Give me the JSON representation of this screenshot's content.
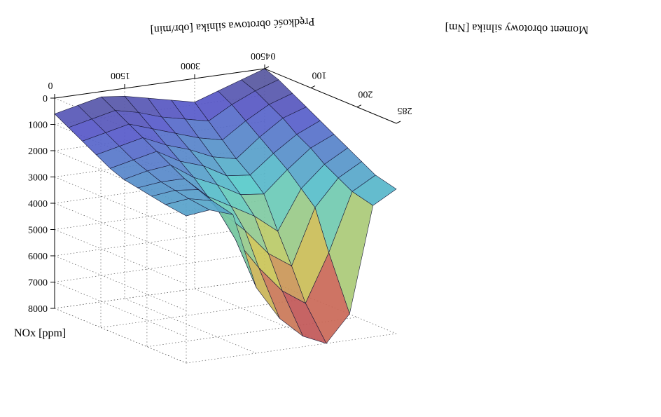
{
  "chart_data": {
    "type": "surface",
    "title": "",
    "xlabel": "Prędkość obrotowa silnika [obr/min]",
    "ylabel": "Moment obrotowy silnika [Nm]",
    "zlabel": "NOx [ppm]",
    "x_ticks": [
      "0",
      "1500",
      "3000",
      "4500"
    ],
    "y_ticks": [
      "0",
      "100",
      "200",
      "285"
    ],
    "z_ticks": [
      "0",
      "1000",
      "2000",
      "3000",
      "4000",
      "5000",
      "6000",
      "7000",
      "8000"
    ],
    "xlim": [
      0,
      4500
    ],
    "ylim": [
      0,
      285
    ],
    "zlim": [
      0,
      8000
    ],
    "z_axis_reversed": true,
    "image_rotated_180": true,
    "grid": true,
    "colormap": "jet",
    "x": [
      0,
      500,
      1000,
      1500,
      2000,
      2500,
      3000,
      3500,
      4000,
      4500
    ],
    "y": [
      0,
      30,
      60,
      90,
      120,
      150,
      180,
      210,
      240,
      285
    ],
    "z": [
      [
        600,
        400,
        200,
        300,
        500,
        700,
        900,
        600,
        300,
        0
      ],
      [
        900,
        700,
        500,
        700,
        1000,
        1200,
        1400,
        900,
        500,
        200
      ],
      [
        1200,
        1000,
        800,
        1100,
        1400,
        1700,
        1900,
        1300,
        800,
        500
      ],
      [
        1500,
        1300,
        1100,
        1500,
        1800,
        2200,
        2400,
        1700,
        1100,
        800
      ],
      [
        1800,
        1600,
        1400,
        1900,
        2200,
        2700,
        2800,
        2100,
        1500,
        1100
      ],
      [
        2000,
        1800,
        1700,
        2300,
        2700,
        3200,
        3300,
        2500,
        1800,
        1400
      ],
      [
        2100,
        2000,
        2000,
        2800,
        3300,
        3800,
        4500,
        3000,
        2200,
        1700
      ],
      [
        2200,
        2100,
        2200,
        3200,
        4000,
        5000,
        5600,
        3500,
        2500,
        2000
      ],
      [
        2300,
        2200,
        2400,
        4000,
        5200,
        6200,
        6800,
        5000,
        2800,
        2300
      ],
      [
        2400,
        2300,
        2600,
        5500,
        6800,
        7600,
        8000,
        7000,
        3000,
        2500
      ]
    ]
  }
}
